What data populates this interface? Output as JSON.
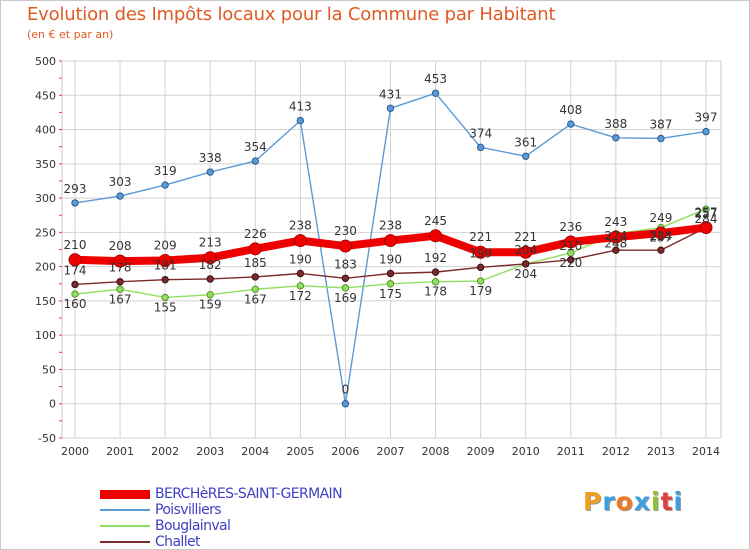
{
  "title": "Evolution des Impôts locaux pour la Commune par Habitant",
  "subtitle": "(en € et par an)",
  "logo": {
    "text": "Proxiti",
    "letters": [
      {
        "ch": "P",
        "color": "#f0a020"
      },
      {
        "ch": "r",
        "color": "#3aa0e0"
      },
      {
        "ch": "o",
        "color": "#f07820"
      },
      {
        "ch": "x",
        "color": "#3aa0e0"
      },
      {
        "ch": "i",
        "color": "#90c030"
      },
      {
        "ch": "t",
        "color": "#e04040"
      },
      {
        "ch": "i",
        "color": "#3aa0e0"
      }
    ]
  },
  "chart_data": {
    "type": "line",
    "title": "Evolution des Impôts locaux pour la Commune par Habitant",
    "subtitle": "(en € et par an)",
    "xlabel": "",
    "ylabel": "",
    "x": [
      "2000",
      "2001",
      "2002",
      "2003",
      "2004",
      "2005",
      "2006",
      "2007",
      "2008",
      "2009",
      "2010",
      "2011",
      "2012",
      "2013",
      "2014"
    ],
    "ylim": [
      -50,
      500
    ],
    "yticks": [
      "-50",
      "0",
      "50",
      "100",
      "150",
      "200",
      "250",
      "300",
      "350",
      "400",
      "450",
      "500"
    ],
    "grid": true,
    "legend_position": "bottom-left",
    "series": [
      {
        "name": "BERCHèRES-SAINT-GERMAIN",
        "color": "#ee0000",
        "values": [
          210,
          208,
          209,
          213,
          226,
          238,
          230,
          238,
          245,
          221,
          221,
          236,
          243,
          249,
          257
        ],
        "labels": [
          "210",
          "208",
          "209",
          "213",
          "226",
          "238",
          "230",
          "238",
          "245",
          "221",
          "221",
          "236",
          "243",
          "249",
          "257"
        ]
      },
      {
        "name": "Poisvilliers",
        "color": "#5b9bd5",
        "values": [
          293,
          303,
          319,
          338,
          354,
          413,
          0,
          431,
          453,
          374,
          361,
          408,
          388,
          387,
          397
        ],
        "labels": [
          "293",
          "303",
          "319",
          "338",
          "354",
          "413",
          "0",
          "431",
          "453",
          "374",
          "361",
          "408",
          "388",
          "387",
          "397"
        ]
      },
      {
        "name": "Bouglainval",
        "color": "#90e060",
        "values": [
          160,
          167,
          155,
          159,
          167,
          172,
          169,
          175,
          178,
          179,
          204,
          220,
          248,
          257,
          284
        ],
        "labels": [
          "160",
          "167",
          "155",
          "159",
          "167",
          "172",
          "169",
          "175",
          "178",
          "179",
          "204",
          "220",
          "248",
          "257",
          "284"
        ]
      },
      {
        "name": "Challet",
        "color": "#7a2a2a",
        "values": [
          174,
          178,
          181,
          182,
          185,
          190,
          183,
          190,
          192,
          199,
          204,
          210,
          224,
          224,
          257
        ],
        "labels": [
          "174",
          "178",
          "181",
          "182",
          "185",
          "190",
          "183",
          "190",
          "192",
          "199",
          "204",
          "210",
          "224",
          "224",
          "257"
        ]
      }
    ]
  }
}
